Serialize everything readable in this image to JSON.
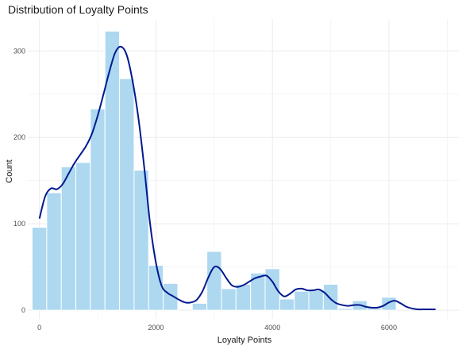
{
  "chart_data": {
    "type": "bar",
    "title": "Distribution of Loyalty Points",
    "xlabel": "Loyalty Points",
    "ylabel": "Count",
    "xlim": [
      -200,
      7200
    ],
    "ylim": [
      -10,
      337
    ],
    "xticks": [
      0,
      2000,
      4000,
      6000
    ],
    "yticks": [
      0,
      100,
      200,
      300
    ],
    "grid": true,
    "legend": "none",
    "bin_width": 250,
    "bins": [
      {
        "x": 0,
        "count": 96
      },
      {
        "x": 250,
        "count": 136
      },
      {
        "x": 500,
        "count": 166
      },
      {
        "x": 750,
        "count": 171
      },
      {
        "x": 1000,
        "count": 233
      },
      {
        "x": 1250,
        "count": 323
      },
      {
        "x": 1500,
        "count": 268
      },
      {
        "x": 1750,
        "count": 162
      },
      {
        "x": 2000,
        "count": 52
      },
      {
        "x": 2250,
        "count": 31
      },
      {
        "x": 2500,
        "count": 0
      },
      {
        "x": 2750,
        "count": 8
      },
      {
        "x": 3000,
        "count": 68
      },
      {
        "x": 3250,
        "count": 25
      },
      {
        "x": 3500,
        "count": 30
      },
      {
        "x": 3750,
        "count": 43
      },
      {
        "x": 4000,
        "count": 48
      },
      {
        "x": 4250,
        "count": 13
      },
      {
        "x": 4500,
        "count": 22
      },
      {
        "x": 4750,
        "count": 23
      },
      {
        "x": 5000,
        "count": 30
      },
      {
        "x": 5250,
        "count": 2
      },
      {
        "x": 5500,
        "count": 11
      },
      {
        "x": 5750,
        "count": 2
      },
      {
        "x": 6000,
        "count": 15
      }
    ],
    "density": {
      "x": [
        0,
        100,
        200,
        300,
        400,
        500,
        600,
        700,
        800,
        900,
        1000,
        1100,
        1200,
        1300,
        1400,
        1500,
        1600,
        1700,
        1800,
        1900,
        2000,
        2100,
        2200,
        2300,
        2400,
        2500,
        2600,
        2700,
        2800,
        2900,
        3000,
        3100,
        3200,
        3300,
        3400,
        3500,
        3600,
        3700,
        3800,
        3900,
        4000,
        4100,
        4200,
        4300,
        4400,
        4500,
        4600,
        4700,
        4800,
        4900,
        5000,
        5100,
        5200,
        5300,
        5400,
        5500,
        5600,
        5700,
        5800,
        5900,
        6000,
        6100,
        6200,
        6300,
        6400,
        6500,
        6600,
        6700,
        6800
      ],
      "y": [
        106,
        132,
        141,
        140,
        146,
        158,
        170,
        180,
        190,
        204,
        225,
        250,
        276,
        298,
        305,
        295,
        265,
        222,
        165,
        100,
        55,
        28,
        20,
        16,
        12,
        9,
        9,
        12,
        22,
        38,
        50,
        48,
        38,
        29,
        27,
        29,
        33,
        37,
        39,
        40,
        33,
        22,
        16,
        19,
        24,
        25,
        23,
        23,
        24,
        20,
        13,
        8,
        6,
        5,
        6,
        6,
        4,
        3,
        3,
        5,
        9,
        11,
        8,
        4,
        2,
        1,
        1,
        1,
        1
      ]
    },
    "colors": {
      "bar_fill": "#add8f0",
      "bar_stroke": "#ffffff",
      "line": "#00198f",
      "grid": "#ebebeb",
      "background": "#ffffff"
    }
  }
}
